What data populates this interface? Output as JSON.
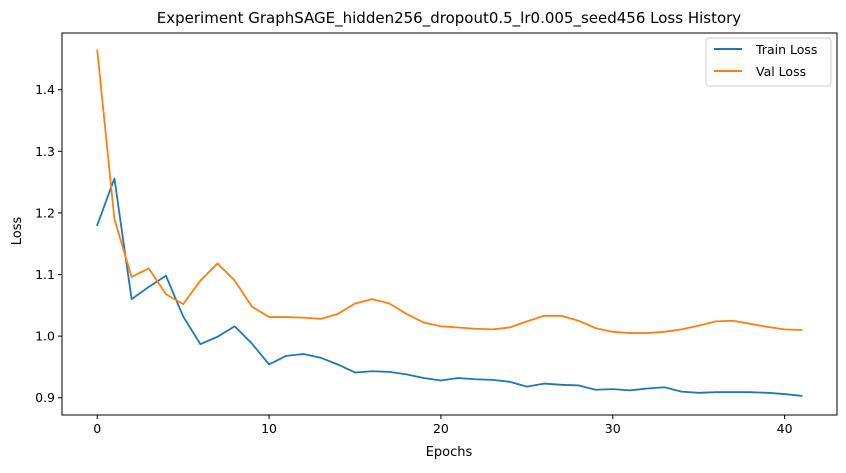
{
  "chart_data": {
    "type": "line",
    "title": "Experiment GraphSAGE_hidden256_dropout0.5_lr0.005_seed456 Loss History",
    "xlabel": "Epochs",
    "ylabel": "Loss",
    "xlim": [
      -2.05,
      43.05
    ],
    "ylim": [
      0.872,
      1.492
    ],
    "xticks": [
      0,
      10,
      20,
      30,
      40
    ],
    "yticks": [
      0.9,
      1.0,
      1.1,
      1.2,
      1.3,
      1.4
    ],
    "ytick_labels": [
      "0.9",
      "1.0",
      "1.1",
      "1.2",
      "1.3",
      "1.4"
    ],
    "grid": false,
    "legend_position": "top-right",
    "x": [
      0,
      1,
      2,
      3,
      4,
      5,
      6,
      7,
      8,
      9,
      10,
      11,
      12,
      13,
      14,
      15,
      16,
      17,
      18,
      19,
      20,
      21,
      22,
      23,
      24,
      25,
      26,
      27,
      28,
      29,
      30,
      31,
      32,
      33,
      34,
      35,
      36,
      37,
      38,
      39,
      40,
      41
    ],
    "series": [
      {
        "name": "Train Loss",
        "color": "#1f77b4",
        "values": [
          1.18,
          1.256,
          1.06,
          1.08,
          1.098,
          1.032,
          0.987,
          0.999,
          1.016,
          0.988,
          0.954,
          0.968,
          0.971,
          0.965,
          0.954,
          0.941,
          0.943,
          0.942,
          0.938,
          0.932,
          0.928,
          0.932,
          0.93,
          0.929,
          0.926,
          0.918,
          0.923,
          0.921,
          0.92,
          0.913,
          0.914,
          0.912,
          0.915,
          0.917,
          0.91,
          0.908,
          0.909,
          0.909,
          0.909,
          0.908,
          0.906,
          0.903
        ]
      },
      {
        "name": "Val Loss",
        "color": "#ff7f0e",
        "values": [
          1.464,
          1.19,
          1.096,
          1.11,
          1.068,
          1.052,
          1.09,
          1.118,
          1.09,
          1.048,
          1.031,
          1.031,
          1.03,
          1.028,
          1.036,
          1.053,
          1.06,
          1.053,
          1.036,
          1.022,
          1.016,
          1.014,
          1.012,
          1.011,
          1.014,
          1.024,
          1.033,
          1.033,
          1.025,
          1.013,
          1.007,
          1.005,
          1.005,
          1.007,
          1.011,
          1.017,
          1.024,
          1.025,
          1.02,
          1.015,
          1.011,
          1.01
        ]
      }
    ]
  }
}
